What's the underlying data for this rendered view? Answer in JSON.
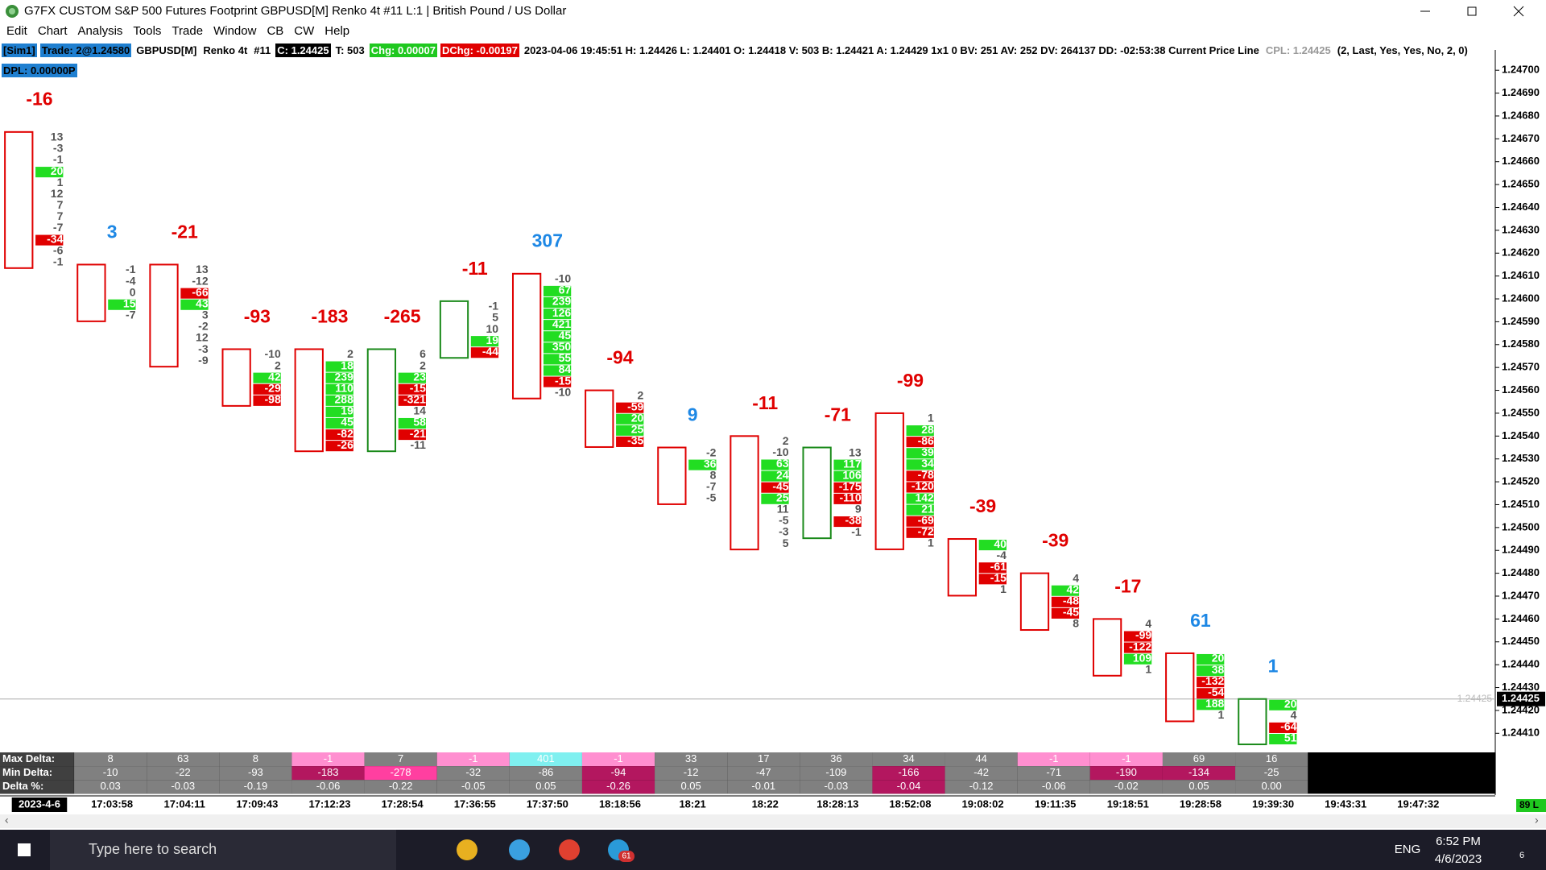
{
  "window": {
    "title": "G7FX CUSTOM S&P 500 Futures Footprint GBPUSD[M]  Renko 4t  #11 L:1 | British Pound / US Dollar",
    "menu": [
      "Edit",
      "Chart",
      "Analysis",
      "Tools",
      "Trade",
      "Window",
      "CB",
      "CW",
      "Help"
    ]
  },
  "status": {
    "segments": [
      {
        "text": "[Sim1]",
        "bg": "#1f7fd0",
        "fg": "#000"
      },
      {
        "text": "Trade: 2@1.24580",
        "bg": "#1f7fd0",
        "fg": "#000"
      },
      {
        "text": "GBPUSD[M]",
        "bg": "#fff",
        "fg": "#000"
      },
      {
        "text": "Renko 4t",
        "bg": "#fff",
        "fg": "#000"
      },
      {
        "text": "#11",
        "bg": "#fff",
        "fg": "#000"
      },
      {
        "text": "C: 1.24425",
        "bg": "#000",
        "fg": "#fff"
      },
      {
        "text": "T: 503",
        "bg": "#fff",
        "fg": "#000"
      },
      {
        "text": "Chg: 0.00007",
        "bg": "#1fc81f",
        "fg": "#fff"
      },
      {
        "text": "DChg: -0.00197",
        "bg": "#e00000",
        "fg": "#fff"
      },
      {
        "text": "2023-04-06 19:45:51 H: 1.24426 L: 1.24401 O: 1.24418 V: 503 B: 1.24421 A: 1.24429 1x1 0 BV: 251 AV: 252 DV: 264137 DD: -02:53:38 Current Price Line",
        "bg": "#fff",
        "fg": "#000"
      },
      {
        "text": "CPL: 1.24425",
        "bg": "#fff",
        "fg": "#999"
      },
      {
        "text": "(2, Last, Yes, Yes, No, 2, 0)",
        "bg": "#fff",
        "fg": "#000"
      }
    ],
    "line2": {
      "text": "DPL: 0.00000P",
      "bg": "#1f7fd0",
      "fg": "#000"
    }
  },
  "chart_data": {
    "type": "footprint",
    "ylim": [
      1.24402,
      1.24705
    ],
    "yticks": [
      {
        "value": 1.247,
        "label": "1.24700"
      },
      {
        "value": 1.2469,
        "label": "1.24690"
      },
      {
        "value": 1.2468,
        "label": "1.24680"
      },
      {
        "value": 1.2467,
        "label": "1.24670"
      },
      {
        "value": 1.2466,
        "label": "1.24660"
      },
      {
        "value": 1.2465,
        "label": "1.24650"
      },
      {
        "value": 1.2464,
        "label": "1.24640"
      },
      {
        "value": 1.2463,
        "label": "1.24630"
      },
      {
        "value": 1.2462,
        "label": "1.24620"
      },
      {
        "value": 1.2461,
        "label": "1.24610"
      },
      {
        "value": 1.246,
        "label": "1.24600"
      },
      {
        "value": 1.2459,
        "label": "1.24590"
      },
      {
        "value": 1.2458,
        "label": "1.24580"
      },
      {
        "value": 1.2457,
        "label": "1.24570"
      },
      {
        "value": 1.2456,
        "label": "1.24560"
      },
      {
        "value": 1.2455,
        "label": "1.24550"
      },
      {
        "value": 1.2454,
        "label": "1.24540"
      },
      {
        "value": 1.2453,
        "label": "1.24530"
      },
      {
        "value": 1.2452,
        "label": "1.24520"
      },
      {
        "value": 1.2451,
        "label": "1.24510"
      },
      {
        "value": 1.245,
        "label": "1.24500"
      },
      {
        "value": 1.2449,
        "label": "1.24490"
      },
      {
        "value": 1.2448,
        "label": "1.24480"
      },
      {
        "value": 1.2447,
        "label": "1.24470"
      },
      {
        "value": 1.2446,
        "label": "1.24460"
      },
      {
        "value": 1.2445,
        "label": "1.24450"
      },
      {
        "value": 1.2444,
        "label": "1.24440"
      },
      {
        "value": 1.2443,
        "label": "1.24430"
      },
      {
        "value": 1.2442,
        "label": "1.24420"
      },
      {
        "value": 1.2441,
        "label": "1.24410"
      }
    ],
    "current_price": {
      "value": 1.24425,
      "label": "1.24425"
    },
    "bars": [
      {
        "delta": -16,
        "high": 1.24673,
        "box_color": "#e00000",
        "cells": [
          13,
          -3,
          -1,
          20,
          1,
          12,
          7,
          7,
          -7,
          -34,
          -6,
          -1
        ]
      },
      {
        "delta": 3,
        "high": 1.24615,
        "box_color": "#e00000",
        "cells": [
          -1,
          -4,
          0,
          15,
          -7
        ]
      },
      {
        "delta": -21,
        "high": 1.24615,
        "box_color": "#e00000",
        "cells": [
          13,
          -12,
          -66,
          43,
          3,
          -2,
          12,
          -3,
          -9
        ]
      },
      {
        "delta": -93,
        "high": 1.24578,
        "box_color": "#e00000",
        "cells": [
          -10,
          2,
          42,
          -29,
          -98
        ]
      },
      {
        "delta": -183,
        "high": 1.24578,
        "box_color": "#e00000",
        "cells": [
          2,
          18,
          239,
          110,
          288,
          19,
          45,
          -82,
          -26
        ]
      },
      {
        "delta": -265,
        "high": 1.24578,
        "box_color": "#1a8a1a",
        "cells": [
          6,
          2,
          23,
          -15,
          -321,
          14,
          58,
          -21,
          -11
        ]
      },
      {
        "delta": -11,
        "high": 1.24599,
        "box_color": "#1a8a1a",
        "cells": [
          -1,
          5,
          10,
          19,
          -44
        ]
      },
      {
        "delta": 307,
        "high": 1.24611,
        "box_color": "#e00000",
        "cells": [
          -10,
          67,
          239,
          126,
          421,
          45,
          350,
          55,
          84,
          -15,
          -10
        ]
      },
      {
        "delta": -94,
        "high": 1.2456,
        "box_color": "#e00000",
        "cells": [
          2,
          -59,
          20,
          25,
          -35
        ]
      },
      {
        "delta": 9,
        "high": 1.24535,
        "box_color": "#e00000",
        "cells": [
          -2,
          36,
          8,
          -7,
          -5
        ]
      },
      {
        "delta": -11,
        "high": 1.2454,
        "box_color": "#e00000",
        "cells": [
          2,
          -10,
          63,
          24,
          -45,
          25,
          11,
          -5,
          -3,
          5
        ]
      },
      {
        "delta": -71,
        "high": 1.24535,
        "box_color": "#1a8a1a",
        "cells": [
          13,
          117,
          106,
          -175,
          -110,
          9,
          -38,
          -1
        ]
      },
      {
        "delta": -99,
        "high": 1.2455,
        "box_color": "#e00000",
        "cells": [
          1,
          28,
          -86,
          39,
          34,
          -78,
          -120,
          142,
          21,
          -69,
          -72,
          1
        ]
      },
      {
        "delta": -39,
        "high": 1.24495,
        "box_color": "#e00000",
        "cells": [
          40,
          -4,
          -61,
          -15,
          1
        ]
      },
      {
        "delta": -39,
        "high": 1.2448,
        "box_color": "#e00000",
        "cells": [
          4,
          42,
          -48,
          -45,
          8
        ]
      },
      {
        "delta": -17,
        "high": 1.2446,
        "box_color": "#e00000",
        "cells": [
          4,
          -99,
          -122,
          109,
          1
        ]
      },
      {
        "delta": 61,
        "high": 1.24445,
        "box_color": "#e00000",
        "cells": [
          20,
          38,
          -132,
          -54,
          188,
          1
        ]
      },
      {
        "delta": 1,
        "high": 1.24425,
        "box_color": "#1a8a1a",
        "cells": [
          20,
          4,
          -64,
          51
        ]
      }
    ]
  },
  "summary": {
    "rows": [
      {
        "label": "Max Delta:",
        "cells": [
          "8",
          "63",
          "8",
          "-1",
          "7",
          "-1",
          "401",
          "-1",
          "33",
          "17",
          "36",
          "34",
          "44",
          "-1",
          "-1",
          "69",
          "16"
        ],
        "colors": [
          "#808080",
          "#808080",
          "#808080",
          "#ff8fd0",
          "#808080",
          "#ff8fd0",
          "#7ff0f0",
          "#ff8fd0",
          "#808080",
          "#808080",
          "#808080",
          "#808080",
          "#808080",
          "#ff8fd0",
          "#ff8fd0",
          "#808080",
          "#808080"
        ]
      },
      {
        "label": "Min Delta:",
        "cells": [
          "-10",
          "-22",
          "-93",
          "-183",
          "-278",
          "-32",
          "-86",
          "-94",
          "-12",
          "-47",
          "-109",
          "-166",
          "-42",
          "-71",
          "-190",
          "-134",
          "-25"
        ],
        "colors": [
          "#808080",
          "#808080",
          "#808080",
          "#b3175f",
          "#ff3fa0",
          "#808080",
          "#808080",
          "#b3175f",
          "#808080",
          "#808080",
          "#808080",
          "#b3175f",
          "#808080",
          "#808080",
          "#b3175f",
          "#b3175f",
          "#808080"
        ]
      },
      {
        "label": "Delta %:",
        "cells": [
          "0.03",
          "-0.03",
          "-0.19",
          "-0.06",
          "-0.22",
          "-0.05",
          "0.05",
          "-0.26",
          "0.05",
          "-0.01",
          "-0.03",
          "-0.04",
          "-0.12",
          "-0.06",
          "-0.02",
          "0.05",
          "0.00"
        ],
        "colors": [
          "#808080",
          "#808080",
          "#808080",
          "#808080",
          "#808080",
          "#808080",
          "#808080",
          "#b3175f",
          "#808080",
          "#808080",
          "#808080",
          "#b3175f",
          "#808080",
          "#808080",
          "#808080",
          "#808080",
          "#808080"
        ]
      }
    ]
  },
  "time_axis": {
    "labels": [
      "2023-4-6",
      "17:03:58",
      "17:04:11",
      "17:09:43",
      "17:12:23",
      "17:28:54",
      "17:36:55",
      "17:37:50",
      "18:18:56",
      "18:21",
      "18:22",
      "18:28:13",
      "18:52:08",
      "19:08:02",
      "19:11:35",
      "19:18:51",
      "19:28:58",
      "19:39:30",
      "19:43:31",
      "19:47:32"
    ]
  },
  "scroll": {
    "label": "89 L"
  },
  "taskbar": {
    "search": "Type here to search",
    "badge": "61",
    "lang": "ENG",
    "time": "6:52 PM",
    "date": "4/6/2023",
    "notifications": "6"
  }
}
